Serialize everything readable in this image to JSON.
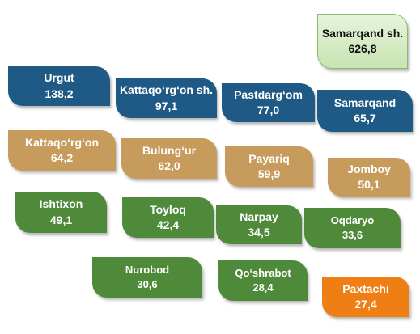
{
  "tiles": [
    {
      "name": "Samarqand sh.",
      "value": "626,8",
      "color": "#d6ecc6"
    },
    {
      "name": "Urgut",
      "value": "138,2",
      "color": "#1f5a86"
    },
    {
      "name": "Kattaqo‘rg‘on sh.",
      "value": "97,1",
      "color": "#1f5a86"
    },
    {
      "name": "Pastdarg‘om",
      "value": "77,0",
      "color": "#1f5a86"
    },
    {
      "name": "Samarqand",
      "value": "65,7",
      "color": "#1f5a86"
    },
    {
      "name": "Kattaqo‘rg‘on",
      "value": "64,2",
      "color": "#c69b5c"
    },
    {
      "name": "Bulung‘ur",
      "value": "62,0",
      "color": "#c69b5c"
    },
    {
      "name": "Payariq",
      "value": "59,9",
      "color": "#c69b5c"
    },
    {
      "name": "Jomboy",
      "value": "50,1",
      "color": "#c69b5c"
    },
    {
      "name": "Ishtixon",
      "value": "49,1",
      "color": "#4e8a3a"
    },
    {
      "name": "Toyloq",
      "value": "42,4",
      "color": "#4e8a3a"
    },
    {
      "name": "Narpay",
      "value": "34,5",
      "color": "#4e8a3a"
    },
    {
      "name": "Oqdaryo",
      "value": "33,6",
      "color": "#4e8a3a"
    },
    {
      "name": "Nurobod",
      "value": "30,6",
      "color": "#4e8a3a"
    },
    {
      "name": "Qo‘shrabot",
      "value": "28,4",
      "color": "#4e8a3a"
    },
    {
      "name": "Paxtachi",
      "value": "27,4",
      "color": "#ef7f14"
    }
  ]
}
